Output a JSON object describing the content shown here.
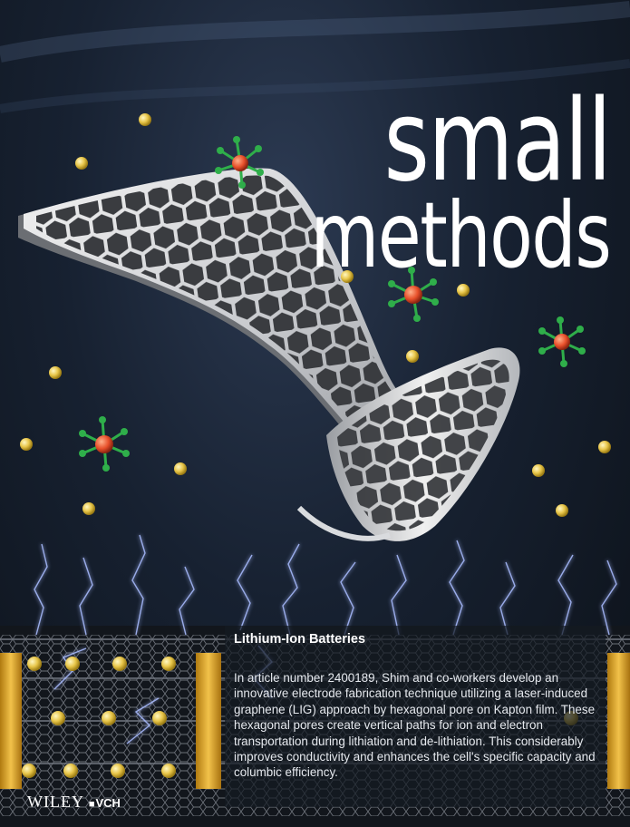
{
  "journal": {
    "title_line1": "small",
    "title_line2": "methods"
  },
  "article": {
    "heading": "Lithium-Ion Batteries",
    "body": "In article number 2400189, Shim and co-workers develop an innovative electrode fabrication technique utilizing a laser-induced graphene (LIG) approach by hexagonal pore on Kapton film. These hexagonal pores create vertical paths for ion and electron transportation during lithiation and de-lithiation. This considerably improves conductivity and enhances the cell's specific capacity and columbic efficiency."
  },
  "publisher": {
    "name": "WILEY",
    "separator": "■",
    "sub": "VCH"
  },
  "colors": {
    "background": "#0f1722",
    "ion": "#e8c64a",
    "molecule_center": "#e8502b",
    "molecule_arm": "#2fae4a",
    "spark": "#9fb6ff",
    "current_collector": "#e0a82a"
  }
}
